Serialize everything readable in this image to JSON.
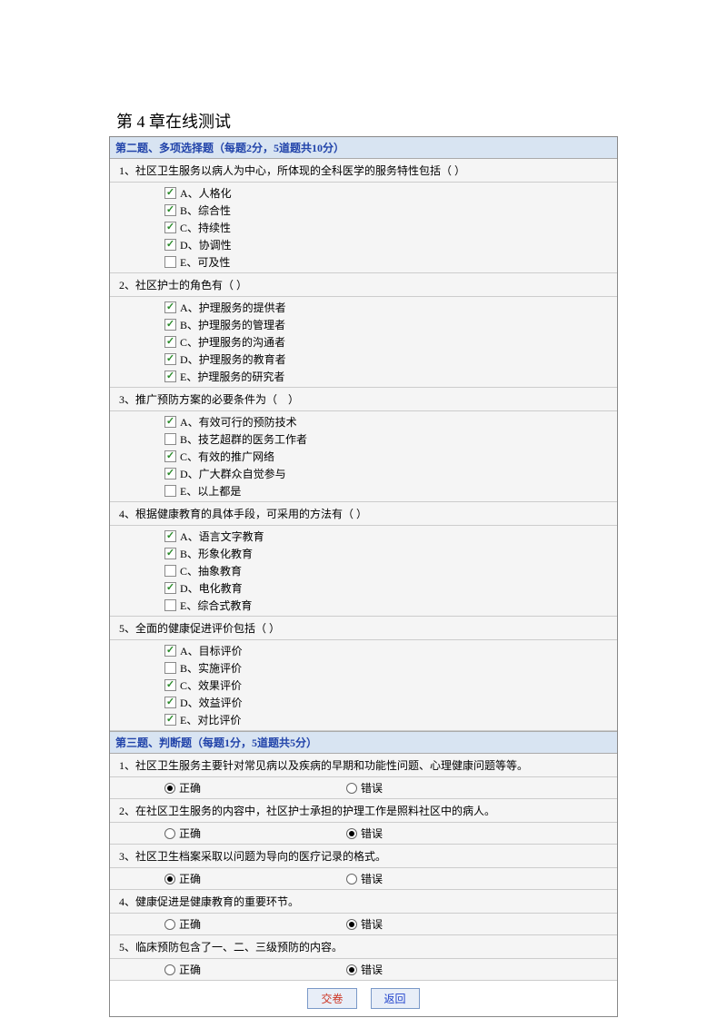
{
  "page_title": "第 4 章在线测试",
  "section2": {
    "header": "第二题、多项选择题（每题2分，5道题共10分）",
    "questions": [
      {
        "text": "1、社区卫生服务以病人为中心，所体现的全科医学的服务特性包括（ ）",
        "opts": [
          {
            "label": "A、人格化",
            "c": true
          },
          {
            "label": "B、综合性",
            "c": true
          },
          {
            "label": "C、持续性",
            "c": true
          },
          {
            "label": "D、协调性",
            "c": true
          },
          {
            "label": "E、可及性",
            "c": false
          }
        ]
      },
      {
        "text": "2、社区护士的角色有（ ）",
        "opts": [
          {
            "label": "A、护理服务的提供者",
            "c": true
          },
          {
            "label": "B、护理服务的管理者",
            "c": true
          },
          {
            "label": "C、护理服务的沟通者",
            "c": true
          },
          {
            "label": "D、护理服务的教育者",
            "c": true
          },
          {
            "label": "E、护理服务的研究者",
            "c": true
          }
        ]
      },
      {
        "text": "3、推广预防方案的必要条件为（　）",
        "opts": [
          {
            "label": "A、有效可行的预防技术",
            "c": true
          },
          {
            "label": "B、技艺超群的医务工作者",
            "c": false
          },
          {
            "label": "C、有效的推广网络",
            "c": true
          },
          {
            "label": "D、广大群众自觉参与",
            "c": true
          },
          {
            "label": "E、以上都是",
            "c": false
          }
        ]
      },
      {
        "text": "4、根据健康教育的具体手段，可采用的方法有（ ）",
        "opts": [
          {
            "label": "A、语言文字教育",
            "c": true
          },
          {
            "label": "B、形象化教育",
            "c": true
          },
          {
            "label": "C、抽象教育",
            "c": false
          },
          {
            "label": "D、电化教育",
            "c": true
          },
          {
            "label": "E、综合式教育",
            "c": false
          }
        ]
      },
      {
        "text": "5、全面的健康促进评价包括（ ）",
        "opts": [
          {
            "label": "A、目标评价",
            "c": true
          },
          {
            "label": "B、实施评价",
            "c": false
          },
          {
            "label": "C、效果评价",
            "c": true
          },
          {
            "label": "D、效益评价",
            "c": true
          },
          {
            "label": "E、对比评价",
            "c": true
          }
        ]
      }
    ]
  },
  "section3": {
    "header": "第三题、判断题（每题1分，5道题共5分）",
    "true_label": "正确",
    "false_label": "错误",
    "questions": [
      {
        "text": "1、社区卫生服务主要针对常见病以及疾病的早期和功能性问题、心理健康问题等等。",
        "ans": "t"
      },
      {
        "text": "2、在社区卫生服务的内容中，社区护士承担的护理工作是照料社区中的病人。",
        "ans": "f"
      },
      {
        "text": "3、社区卫生档案采取以问题为导向的医疗记录的格式。",
        "ans": "t"
      },
      {
        "text": "4、健康促进是健康教育的重要环节。",
        "ans": "f"
      },
      {
        "text": "5、临床预防包含了一、二、三级预防的内容。",
        "ans": "f"
      }
    ]
  },
  "buttons": {
    "submit": "交卷",
    "back": "返回"
  }
}
